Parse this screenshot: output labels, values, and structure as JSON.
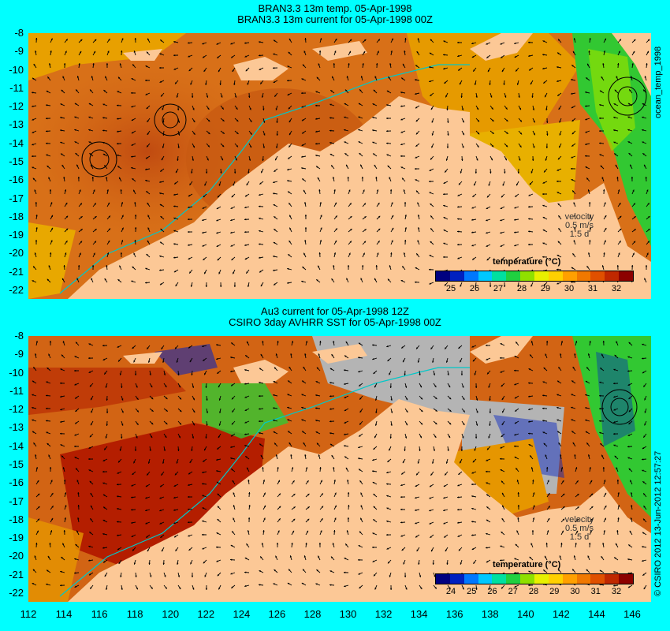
{
  "top_panel": {
    "title_line1": "BRAN3.3 13m temp. 05-Apr-1998",
    "title_line2": "BRAN3.3 13m current for 05-Apr-1998 00Z",
    "side_label": "ocean_temp_1998",
    "velocity_legend": {
      "label": "velocity",
      "speed": "0.5 m/s",
      "duration": "1.5 d"
    },
    "colorbar": {
      "title": "temperature (°C)",
      "ticks": [
        "25",
        "26",
        "27",
        "28",
        "29",
        "30",
        "31",
        "32"
      ]
    }
  },
  "bottom_panel": {
    "title_line1": "Au3 current for 05-Apr-1998 12Z",
    "title_line2": "CSIRO 3day AVHRR SST for 05-Apr-1998 00Z",
    "side_label": "© CSIRO 2012  13-Jun-2012 12:57:27",
    "velocity_legend": {
      "label": "velocity",
      "speed": "0.5 m/s",
      "duration": "1.5 d"
    },
    "colorbar": {
      "title": "temperature (°C)",
      "ticks": [
        "24",
        "25",
        "26",
        "27",
        "28",
        "29",
        "30",
        "31",
        "32"
      ]
    }
  },
  "axes": {
    "latitude_ticks": [
      "-8",
      "-9",
      "-10",
      "-11",
      "-12",
      "-13",
      "-14",
      "-15",
      "-16",
      "-17",
      "-18",
      "-19",
      "-20",
      "-21",
      "-22"
    ],
    "longitude_ticks": [
      "112",
      "114",
      "116",
      "118",
      "120",
      "122",
      "124",
      "126",
      "128",
      "130",
      "132",
      "134",
      "136",
      "138",
      "140",
      "142",
      "144",
      "146"
    ]
  },
  "colors": {
    "background": "#00ffff",
    "land": "#fcc896",
    "sea_warm": "#d26414",
    "sea_hot": "#b41e00",
    "sea_mid": "#e69600",
    "sea_cool": "#32c832",
    "no_data": "#b4b4b4",
    "arrows": "#000000",
    "bathymetry": "#00c8c8"
  },
  "colorbar_palette": [
    "#000080",
    "#0020c0",
    "#0078ff",
    "#00c8ff",
    "#00e0a0",
    "#20d040",
    "#90e000",
    "#e8f000",
    "#ffd000",
    "#ffa000",
    "#f07800",
    "#e05000",
    "#c02800",
    "#8c0000"
  ]
}
